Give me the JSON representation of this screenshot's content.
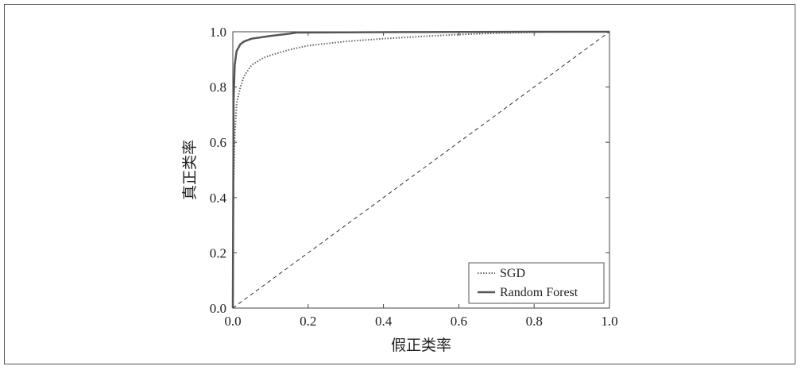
{
  "chart_data": {
    "type": "line",
    "title": "",
    "xlabel": "假正类率",
    "ylabel": "真正类率",
    "xlim": [
      0.0,
      1.0
    ],
    "ylim": [
      0.0,
      1.0
    ],
    "x_ticks": [
      "0.0",
      "0.2",
      "0.4",
      "0.6",
      "0.8",
      "1.0"
    ],
    "y_ticks": [
      "0.0",
      "0.2",
      "0.4",
      "0.6",
      "0.8",
      "1.0"
    ],
    "grid": false,
    "legend_position": "bottom-right",
    "series": [
      {
        "name": "SGD",
        "style": "dotted",
        "color": "#666666",
        "x": [
          0.0,
          0.002,
          0.005,
          0.01,
          0.02,
          0.03,
          0.05,
          0.08,
          0.1,
          0.15,
          0.2,
          0.3,
          0.4,
          0.5,
          0.6,
          0.7,
          0.8,
          0.9,
          1.0
        ],
        "y": [
          0.0,
          0.45,
          0.62,
          0.74,
          0.8,
          0.84,
          0.88,
          0.905,
          0.915,
          0.935,
          0.95,
          0.965,
          0.975,
          0.983,
          0.99,
          0.995,
          0.998,
          1.0,
          1.0
        ]
      },
      {
        "name": "Random Forest",
        "style": "solid",
        "color": "#555555",
        "x": [
          0.0,
          0.002,
          0.005,
          0.01,
          0.02,
          0.03,
          0.05,
          0.1,
          0.15,
          0.17,
          0.3,
          0.5,
          0.8,
          1.0
        ],
        "y": [
          0.0,
          0.75,
          0.88,
          0.93,
          0.955,
          0.965,
          0.975,
          0.985,
          0.993,
          0.997,
          0.998,
          0.999,
          1.0,
          1.0
        ]
      },
      {
        "name": "",
        "style": "dashed",
        "color": "#333333",
        "x": [
          0.0,
          1.0
        ],
        "y": [
          0.0,
          1.0
        ]
      }
    ]
  }
}
